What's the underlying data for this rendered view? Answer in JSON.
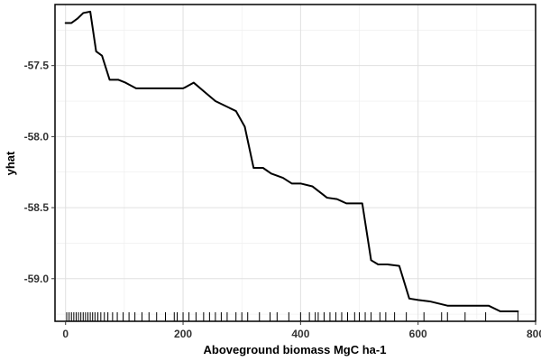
{
  "chart_data": {
    "type": "line",
    "title": "",
    "xlabel": "Aboveground biomass MgC ha-1",
    "ylabel": "yhat",
    "xlim": [
      -18,
      800
    ],
    "ylim": [
      -59.3,
      -57.07
    ],
    "x_ticks": [
      0,
      200,
      400,
      600,
      800
    ],
    "x_tick_labels": [
      "0",
      "200",
      "400",
      "600",
      "800"
    ],
    "y_ticks": [
      -57.5,
      -58.0,
      -58.5,
      -59.0
    ],
    "y_tick_labels": [
      "-57.5",
      "-58.0",
      "-58.5",
      "-59.0"
    ],
    "grid": true,
    "series": [
      {
        "x": [
          0,
          10,
          20,
          30,
          42,
          52,
          62,
          75,
          90,
          102,
          120,
          140,
          170,
          200,
          205,
          218,
          235,
          255,
          270,
          290,
          305,
          320,
          336,
          350,
          370,
          385,
          400,
          420,
          445,
          462,
          478,
          505,
          520,
          532,
          548,
          568,
          585,
          600,
          620,
          650,
          670,
          700,
          720,
          740,
          770
        ],
        "y": [
          -57.2,
          -57.2,
          -57.17,
          -57.13,
          -57.12,
          -57.4,
          -57.43,
          -57.6,
          -57.6,
          -57.62,
          -57.66,
          -57.66,
          -57.66,
          -57.66,
          -57.65,
          -57.62,
          -57.68,
          -57.75,
          -57.78,
          -57.82,
          -57.93,
          -58.22,
          -58.22,
          -58.26,
          -58.29,
          -58.33,
          -58.33,
          -58.35,
          -58.43,
          -58.44,
          -58.47,
          -58.47,
          -58.87,
          -58.9,
          -58.9,
          -58.91,
          -59.14,
          -59.15,
          -59.16,
          -59.19,
          -59.19,
          -59.19,
          -59.19,
          -59.23,
          -59.23
        ]
      }
    ],
    "rug_x": [
      2,
      6,
      10,
      14,
      18,
      22,
      26,
      30,
      34,
      38,
      42,
      46,
      50,
      55,
      60,
      66,
      72,
      80,
      88,
      98,
      108,
      118,
      130,
      142,
      155,
      170,
      185,
      190,
      200,
      210,
      222,
      235,
      245,
      255,
      265,
      275,
      290,
      300,
      310,
      330,
      348,
      360,
      380,
      400,
      415,
      425,
      430,
      440,
      450,
      460,
      470,
      480,
      492,
      500,
      510,
      520,
      535,
      545,
      560,
      580,
      610,
      640,
      650,
      680,
      715,
      770
    ]
  }
}
